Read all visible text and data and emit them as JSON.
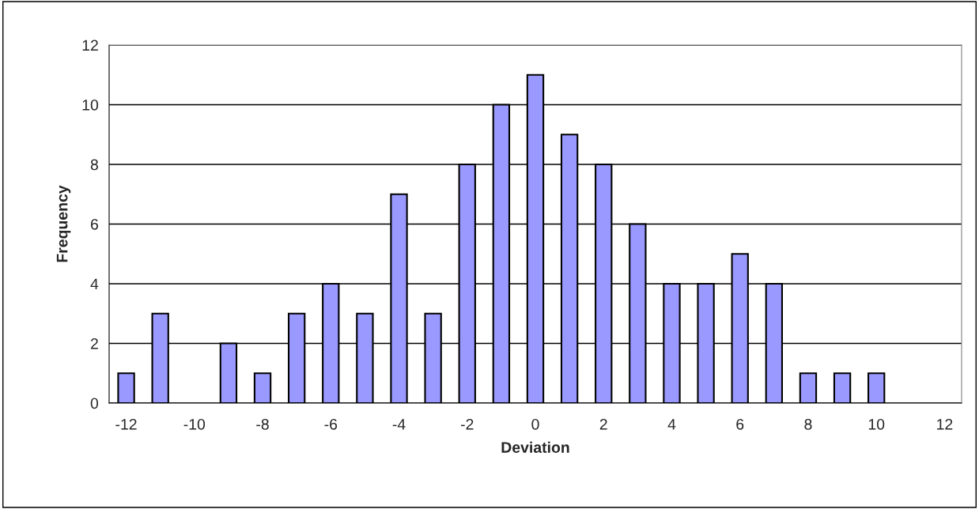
{
  "chart_data": {
    "type": "bar",
    "xlabel": "Deviation",
    "ylabel": "Frequency",
    "categories": [
      "-12",
      null,
      "-10",
      null,
      "-8",
      null,
      "-6",
      null,
      "-4",
      null,
      "-2",
      null,
      "0",
      null,
      "2",
      null,
      "4",
      null,
      "6",
      null,
      "8",
      null,
      "10",
      null,
      "12"
    ],
    "series": [
      {
        "color": "#9999ff",
        "values": [
          1,
          3,
          0,
          2,
          1,
          3,
          4,
          3,
          7,
          3,
          8,
          10,
          11,
          9,
          8,
          6,
          4,
          4,
          5,
          4,
          1,
          1,
          1,
          0,
          0
        ]
      }
    ],
    "ylim": [
      0,
      12
    ],
    "yticks": [
      0,
      2,
      4,
      6,
      8,
      10,
      12
    ],
    "grid": "y",
    "legend": false
  }
}
